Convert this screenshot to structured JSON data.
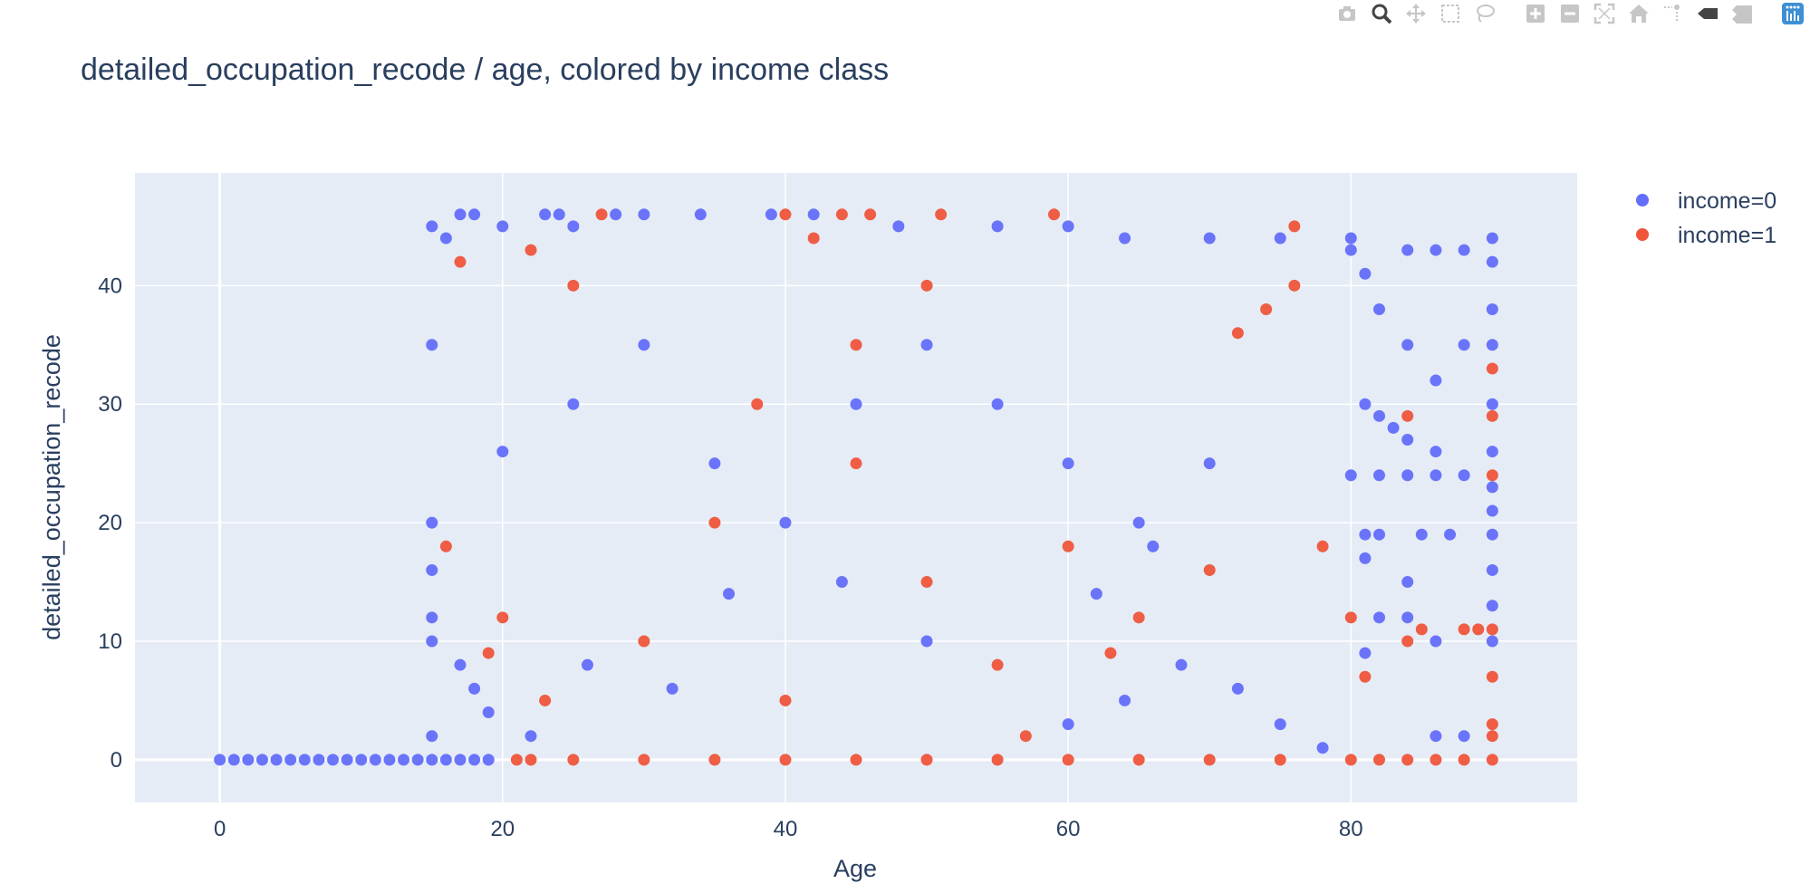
{
  "modebar": {
    "buttons": [
      "camera-icon",
      "zoom-icon",
      "pan-icon",
      "box-select-icon",
      "lasso-icon",
      "zoom-in-icon",
      "zoom-out-icon",
      "autoscale-icon",
      "reset-axes-icon",
      "spike-lines-icon",
      "hover-closest-icon",
      "hover-compare-icon",
      "plotly-logo-icon"
    ]
  },
  "colors": {
    "plot_bg": "#e5ecf6",
    "grid": "#ffffff",
    "text": "#2a3f5f",
    "income0": "#636efa",
    "income1": "#ef553b"
  },
  "chart_data": {
    "type": "scatter",
    "title": "detailed_occupation_recode / age, colored by income class",
    "xlabel": "Age",
    "ylabel": "detailed_occupation_recode",
    "xlim": [
      -6,
      96
    ],
    "ylim": [
      -3.6,
      49.5
    ],
    "xticks": [
      0,
      20,
      40,
      60,
      80
    ],
    "yticks": [
      0,
      10,
      20,
      30,
      40
    ],
    "grid": true,
    "legend_position": "top-right",
    "series": [
      {
        "name": "income=0",
        "description": "dense grid of points for integer ages 15-90 across occupation codes 0-46; ages 0-14 only at code 0",
        "points": [
          [
            0,
            0
          ],
          [
            1,
            0
          ],
          [
            2,
            0
          ],
          [
            3,
            0
          ],
          [
            4,
            0
          ],
          [
            5,
            0
          ],
          [
            6,
            0
          ],
          [
            7,
            0
          ],
          [
            8,
            0
          ],
          [
            9,
            0
          ],
          [
            10,
            0
          ],
          [
            11,
            0
          ],
          [
            12,
            0
          ],
          [
            13,
            0
          ],
          [
            14,
            0
          ],
          [
            15,
            0
          ],
          [
            16,
            0
          ],
          [
            17,
            0
          ],
          [
            18,
            0
          ],
          [
            19,
            0
          ],
          [
            15,
            45
          ],
          [
            16,
            44
          ],
          [
            17,
            46
          ],
          [
            18,
            46
          ],
          [
            20,
            45
          ],
          [
            23,
            46
          ],
          [
            24,
            46
          ],
          [
            25,
            45
          ],
          [
            28,
            46
          ],
          [
            30,
            46
          ],
          [
            34,
            46
          ],
          [
            39,
            46
          ],
          [
            42,
            46
          ],
          [
            48,
            45
          ],
          [
            55,
            45
          ],
          [
            60,
            45
          ],
          [
            64,
            44
          ],
          [
            70,
            44
          ],
          [
            75,
            44
          ],
          [
            80,
            44
          ],
          [
            90,
            44
          ],
          [
            15,
            35
          ],
          [
            15,
            20
          ],
          [
            15,
            16
          ],
          [
            15,
            12
          ],
          [
            15,
            10
          ],
          [
            15,
            2
          ],
          [
            17,
            8
          ],
          [
            18,
            6
          ],
          [
            19,
            4
          ],
          [
            80,
            43
          ],
          [
            84,
            43
          ],
          [
            86,
            43
          ],
          [
            88,
            43
          ],
          [
            90,
            42
          ],
          [
            81,
            41
          ],
          [
            82,
            38
          ],
          [
            84,
            35
          ],
          [
            86,
            32
          ],
          [
            88,
            35
          ],
          [
            81,
            30
          ],
          [
            82,
            29
          ],
          [
            83,
            28
          ],
          [
            84,
            27
          ],
          [
            86,
            26
          ],
          [
            80,
            24
          ],
          [
            82,
            24
          ],
          [
            84,
            24
          ],
          [
            86,
            24
          ],
          [
            88,
            24
          ],
          [
            81,
            19
          ],
          [
            82,
            19
          ],
          [
            85,
            19
          ],
          [
            87,
            19
          ],
          [
            90,
            19
          ],
          [
            81,
            17
          ],
          [
            84,
            15
          ],
          [
            82,
            12
          ],
          [
            84,
            12
          ],
          [
            86,
            10
          ],
          [
            81,
            9
          ],
          [
            86,
            2
          ],
          [
            88,
            2
          ],
          [
            90,
            38
          ],
          [
            90,
            35
          ],
          [
            90,
            30
          ],
          [
            90,
            26
          ],
          [
            90,
            23
          ],
          [
            90,
            21
          ],
          [
            90,
            16
          ],
          [
            90,
            13
          ],
          [
            90,
            10
          ],
          [
            20,
            26
          ],
          [
            25,
            30
          ],
          [
            30,
            35
          ],
          [
            35,
            25
          ],
          [
            40,
            20
          ],
          [
            45,
            30
          ],
          [
            50,
            35
          ],
          [
            55,
            30
          ],
          [
            60,
            25
          ],
          [
            65,
            20
          ],
          [
            70,
            25
          ],
          [
            62,
            14
          ],
          [
            66,
            18
          ],
          [
            68,
            8
          ],
          [
            72,
            6
          ],
          [
            75,
            3
          ],
          [
            78,
            1
          ],
          [
            60,
            3
          ],
          [
            64,
            5
          ],
          [
            50,
            10
          ],
          [
            44,
            15
          ],
          [
            36,
            14
          ],
          [
            32,
            6
          ],
          [
            26,
            8
          ],
          [
            22,
            2
          ]
        ]
      },
      {
        "name": "income=1",
        "description": "points concentrated for ages 20-80 and occupation codes 0-44; sparse scattered points at ages 80-90",
        "points": [
          [
            21,
            0
          ],
          [
            22,
            0
          ],
          [
            25,
            0
          ],
          [
            30,
            0
          ],
          [
            35,
            0
          ],
          [
            40,
            0
          ],
          [
            45,
            0
          ],
          [
            50,
            0
          ],
          [
            55,
            0
          ],
          [
            60,
            0
          ],
          [
            65,
            0
          ],
          [
            70,
            0
          ],
          [
            75,
            0
          ],
          [
            80,
            0
          ],
          [
            82,
            0
          ],
          [
            84,
            0
          ],
          [
            86,
            0
          ],
          [
            88,
            0
          ],
          [
            90,
            0
          ],
          [
            90,
            2
          ],
          [
            90,
            3
          ],
          [
            90,
            7
          ],
          [
            90,
            11
          ],
          [
            88,
            11
          ],
          [
            89,
            11
          ],
          [
            85,
            11
          ],
          [
            84,
            10
          ],
          [
            81,
            7
          ],
          [
            90,
            24
          ],
          [
            90,
            29
          ],
          [
            90,
            33
          ],
          [
            84,
            29
          ],
          [
            76,
            45
          ],
          [
            59,
            46
          ],
          [
            51,
            46
          ],
          [
            46,
            46
          ],
          [
            44,
            46
          ],
          [
            40,
            46
          ],
          [
            27,
            46
          ],
          [
            22,
            43
          ],
          [
            17,
            42
          ],
          [
            16,
            18
          ],
          [
            20,
            12
          ],
          [
            19,
            9
          ],
          [
            23,
            5
          ],
          [
            25,
            40
          ],
          [
            30,
            10
          ],
          [
            35,
            20
          ],
          [
            40,
            5
          ],
          [
            45,
            25
          ],
          [
            50,
            15
          ],
          [
            55,
            8
          ],
          [
            60,
            18
          ],
          [
            65,
            12
          ],
          [
            70,
            16
          ],
          [
            72,
            36
          ],
          [
            74,
            38
          ],
          [
            76,
            40
          ],
          [
            78,
            18
          ],
          [
            80,
            12
          ],
          [
            45,
            35
          ],
          [
            50,
            40
          ],
          [
            38,
            30
          ],
          [
            42,
            44
          ],
          [
            57,
            2
          ],
          [
            63,
            9
          ]
        ]
      }
    ]
  }
}
